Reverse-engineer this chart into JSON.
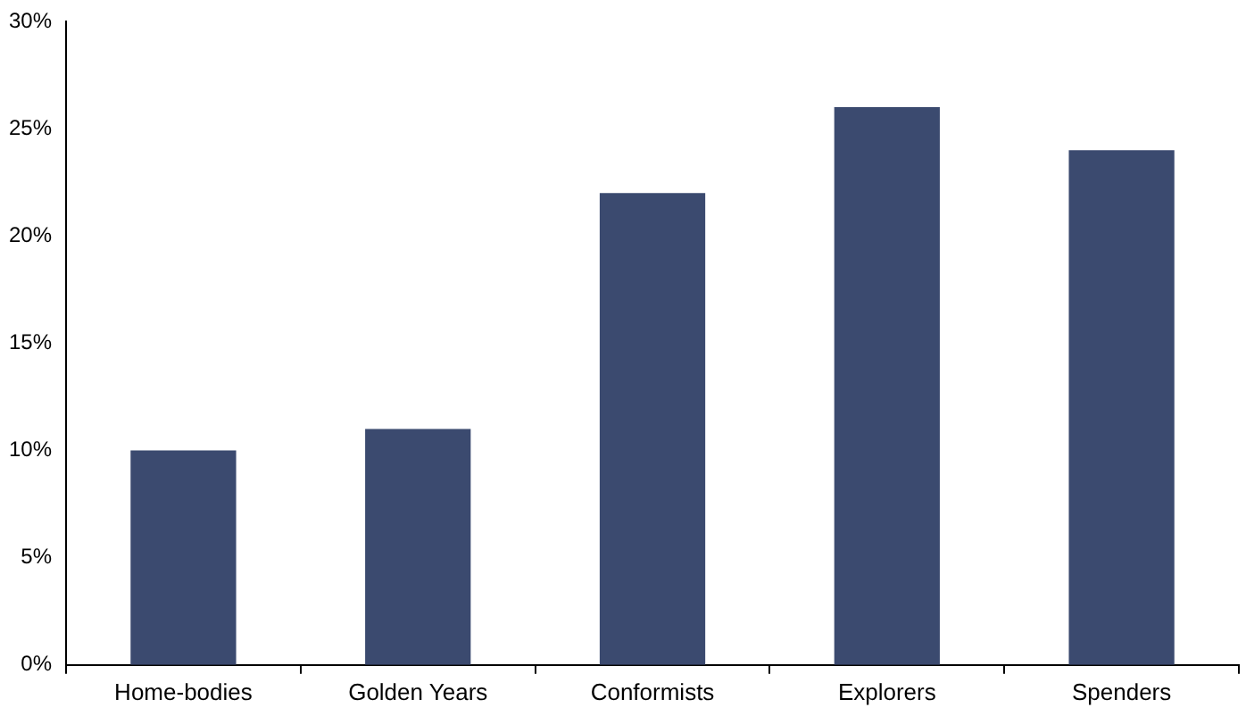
{
  "chart_data": {
    "type": "bar",
    "categories": [
      "Home-bodies",
      "Golden Years",
      "Conformists",
      "Explorers",
      "Spenders"
    ],
    "values": [
      10,
      11,
      22,
      26,
      24
    ],
    "color": "#3b4a6f",
    "ylim": [
      0,
      30
    ],
    "yticks": [
      {
        "value": 0,
        "label": "0%"
      },
      {
        "value": 5,
        "label": "5%"
      },
      {
        "value": 10,
        "label": "10%"
      },
      {
        "value": 15,
        "label": "15%"
      },
      {
        "value": 20,
        "label": "20%"
      },
      {
        "value": 25,
        "label": "25%"
      },
      {
        "value": 30,
        "label": "30%"
      }
    ],
    "grid": false,
    "legend": false
  }
}
